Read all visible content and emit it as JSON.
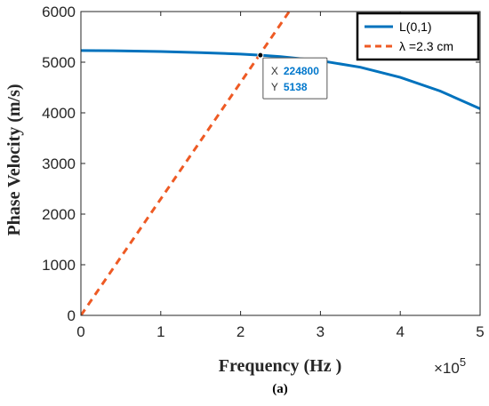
{
  "chart_data": {
    "type": "line",
    "xlabel": "Frequency (Hz )",
    "ylabel": "Phase Velocity (m/s)",
    "xlim": [
      0,
      500000
    ],
    "ylim": [
      0,
      6000
    ],
    "x_ticks": [
      0,
      100000,
      200000,
      300000,
      400000,
      500000
    ],
    "x_tick_labels": [
      "0",
      "1",
      "2",
      "3",
      "4",
      "5"
    ],
    "x_exponent_label": "×10",
    "x_exponent_power": "5",
    "y_ticks": [
      0,
      1000,
      2000,
      3000,
      4000,
      5000,
      6000
    ],
    "y_tick_labels": [
      "0",
      "1000",
      "2000",
      "3000",
      "4000",
      "5000",
      "6000"
    ],
    "grid": false,
    "legend_position": "top-right",
    "series": [
      {
        "name": "L(0,1)",
        "color": "#0072BD",
        "style": "solid",
        "x": [
          0,
          50000,
          100000,
          150000,
          200000,
          224800,
          250000,
          300000,
          350000,
          400000,
          450000,
          500000
        ],
        "y": [
          5230,
          5225,
          5210,
          5190,
          5160,
          5138,
          5110,
          5030,
          4900,
          4700,
          4430,
          4080
        ]
      },
      {
        "name": "λ =2.3 cm",
        "color": "#EE5A24",
        "style": "dashed",
        "x": [
          0,
          260870
        ],
        "y": [
          0,
          6000
        ]
      }
    ],
    "annotation": {
      "x_key": "X",
      "x_value": "224800",
      "y_key": "Y",
      "y_value": "5138",
      "point": [
        224800,
        5138
      ]
    },
    "caption": "(a)"
  }
}
